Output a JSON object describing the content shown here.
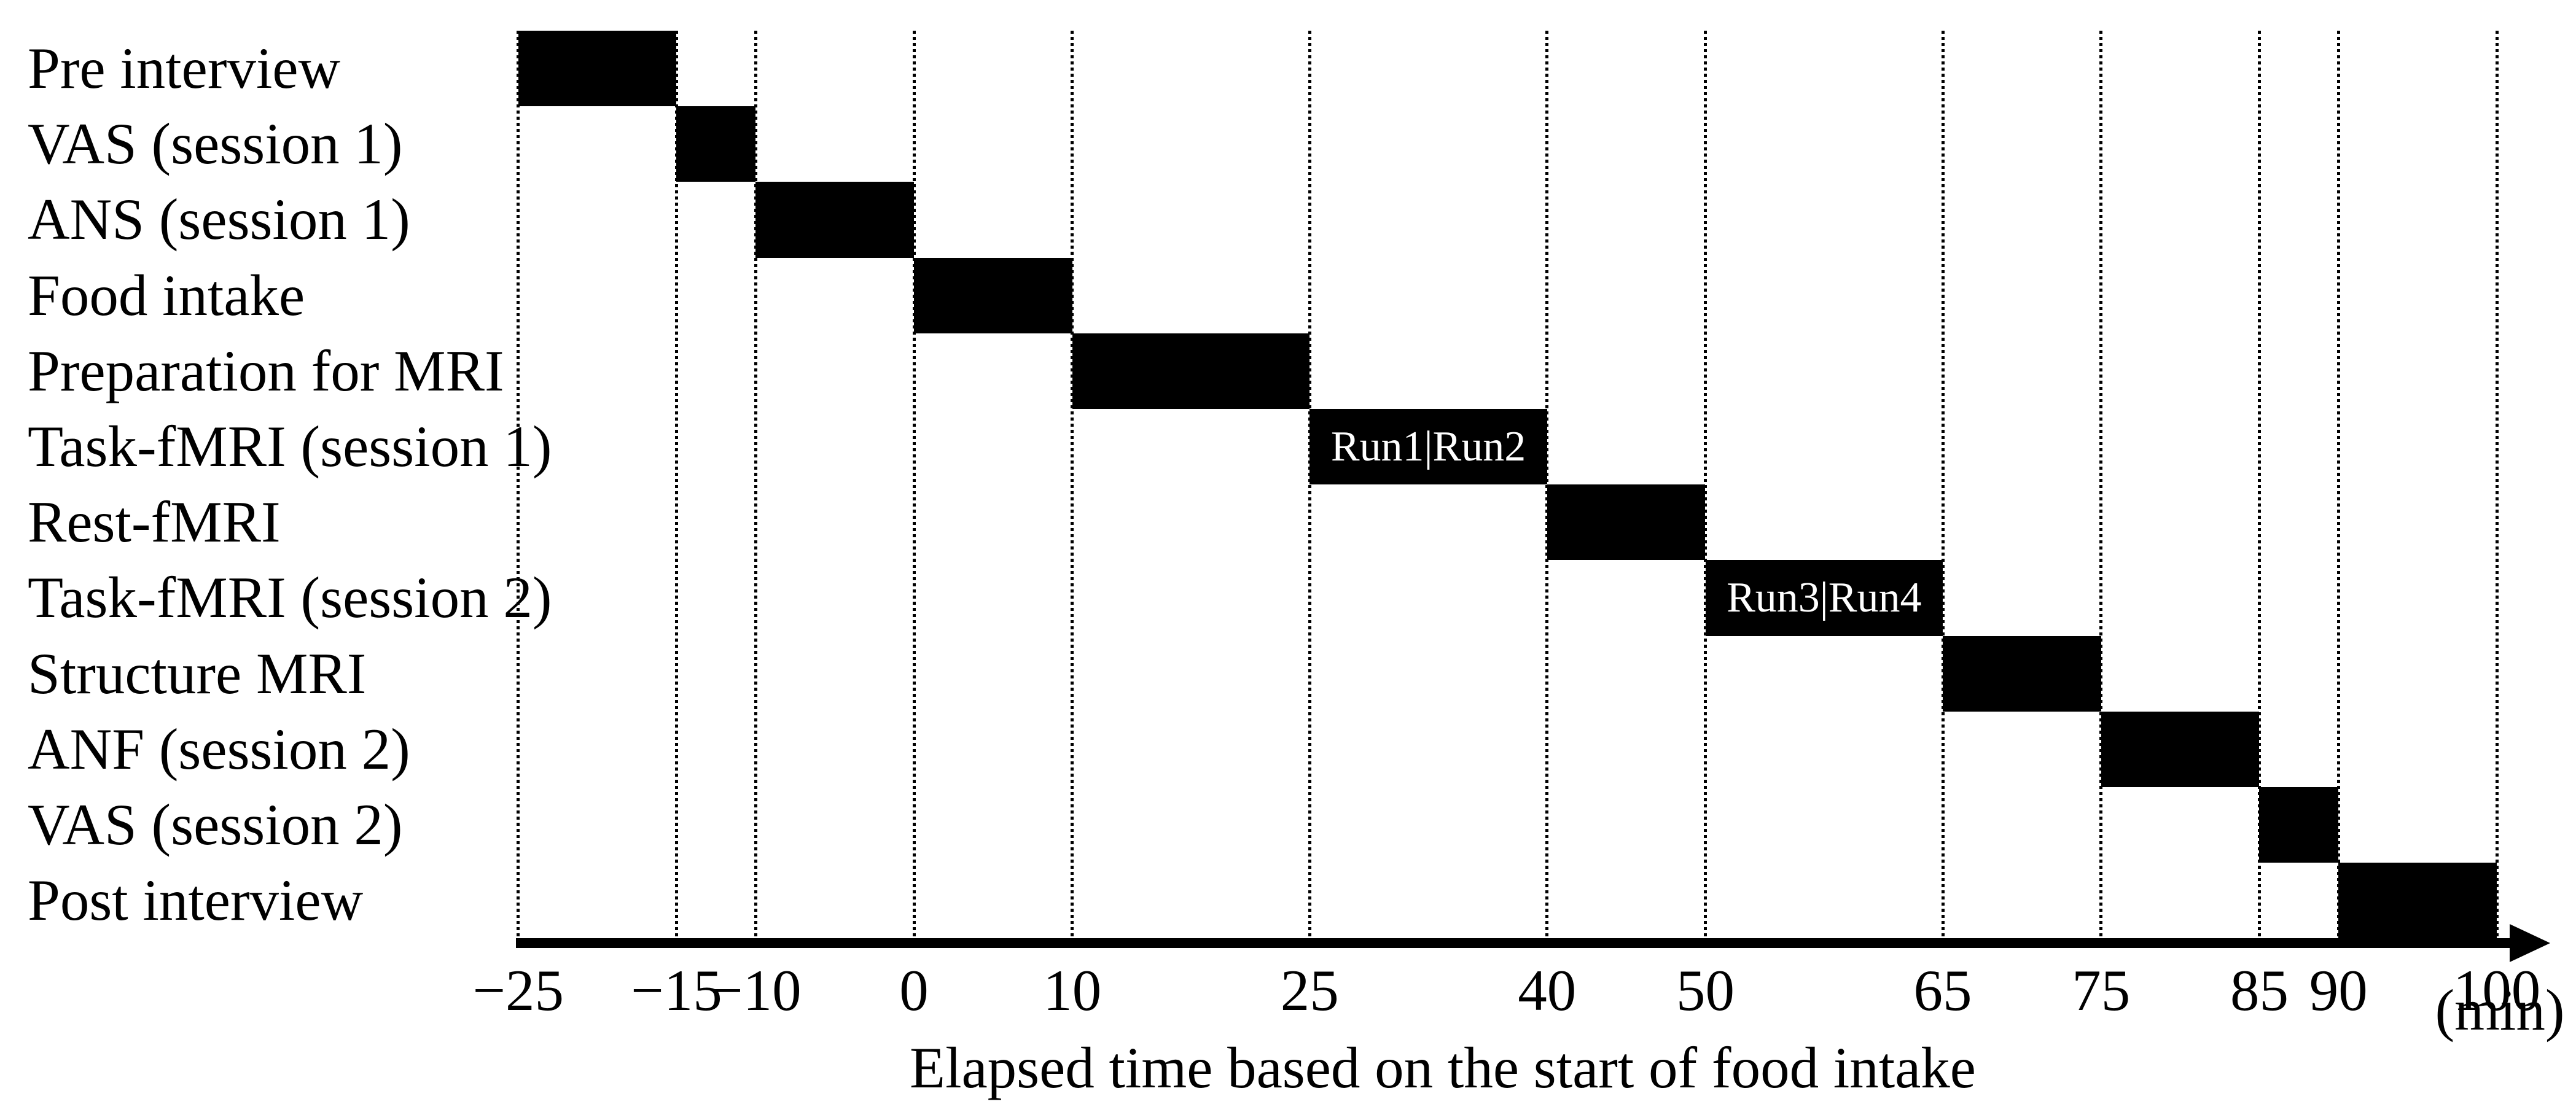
{
  "figure": {
    "background_color": "#ffffff",
    "bar_color": "#000000",
    "bar_label_text_color": "#ffffff",
    "axis_color": "#000000"
  },
  "chart_data": {
    "type": "bar",
    "variant": "gantt-timeline",
    "title": "",
    "xlabel": "Elapsed time based on the start of food intake",
    "x_unit": "(min)",
    "xlim": [
      -25,
      100
    ],
    "grid": "dotted-vertical-at-each-tick",
    "x_ticks": [
      {
        "t": -25,
        "label": "−25"
      },
      {
        "t": -15,
        "label": "−15"
      },
      {
        "t": -10,
        "label": "−10"
      },
      {
        "t": 0,
        "label": "0"
      },
      {
        "t": 10,
        "label": "10"
      },
      {
        "t": 25,
        "label": "25"
      },
      {
        "t": 40,
        "label": "40"
      },
      {
        "t": 50,
        "label": "50"
      },
      {
        "t": 65,
        "label": "65"
      },
      {
        "t": 75,
        "label": "75"
      },
      {
        "t": 85,
        "label": "85"
      },
      {
        "t": 90,
        "label": "90"
      },
      {
        "t": 100,
        "label": "100"
      }
    ],
    "rows": [
      {
        "label": "Pre interview",
        "start": -25,
        "end": -15,
        "bar_label": ""
      },
      {
        "label": "VAS (session 1)",
        "start": -15,
        "end": -10,
        "bar_label": ""
      },
      {
        "label": "ANS (session 1)",
        "start": -10,
        "end": 0,
        "bar_label": ""
      },
      {
        "label": "Food intake",
        "start": 0,
        "end": 10,
        "bar_label": ""
      },
      {
        "label": "Preparation for MRI",
        "start": 10,
        "end": 25,
        "bar_label": ""
      },
      {
        "label": "Task-fMRI (session 1)",
        "start": 25,
        "end": 40,
        "bar_label": "Run1|Run2"
      },
      {
        "label": "Rest-fMRI",
        "start": 40,
        "end": 50,
        "bar_label": ""
      },
      {
        "label": "Task-fMRI (session 2)",
        "start": 50,
        "end": 65,
        "bar_label": "Run3|Run4"
      },
      {
        "label": "Structure MRI",
        "start": 65,
        "end": 75,
        "bar_label": ""
      },
      {
        "label": "ANF (session 2)",
        "start": 75,
        "end": 85,
        "bar_label": ""
      },
      {
        "label": "VAS (session 2)",
        "start": 85,
        "end": 90,
        "bar_label": ""
      },
      {
        "label": "Post interview",
        "start": 90,
        "end": 100,
        "bar_label": ""
      }
    ]
  }
}
